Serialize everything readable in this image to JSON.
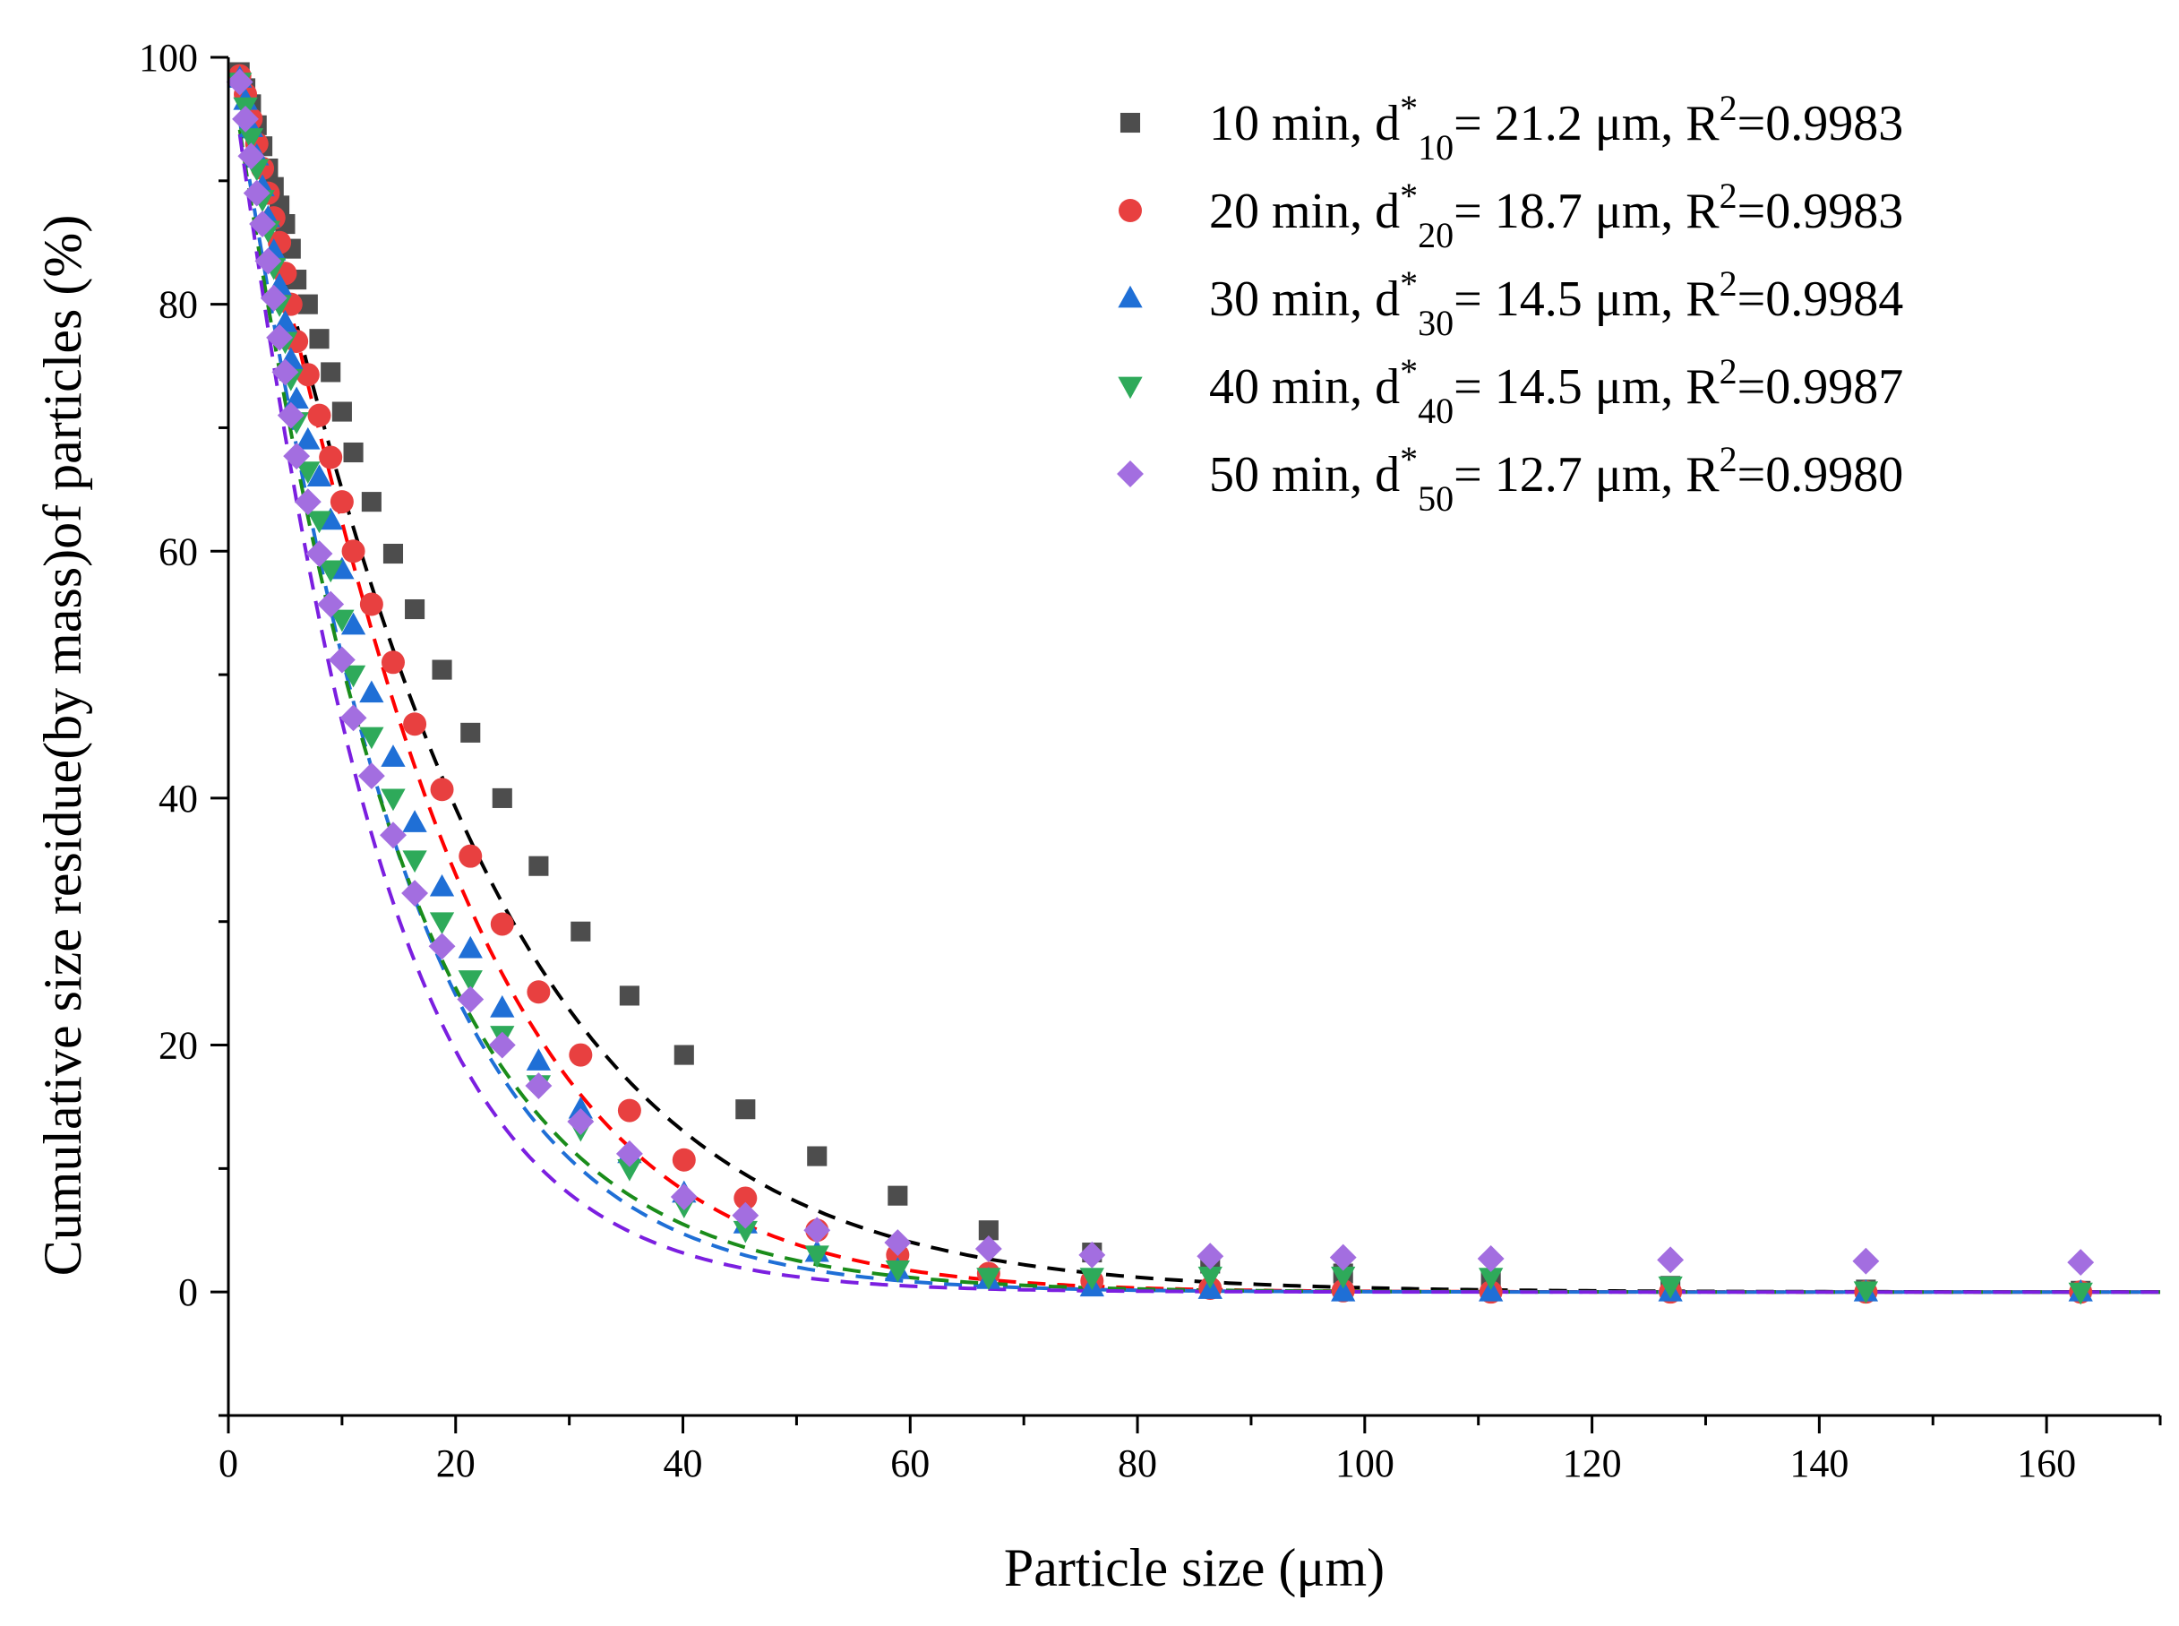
{
  "chart_data": {
    "type": "scatter",
    "xlabel": "Particle size (μm)",
    "ylabel": "Cumulative size residue(by mass)of particles (%)",
    "xlim": [
      0,
      170
    ],
    "ylim": [
      -10,
      100
    ],
    "xticks": [
      0,
      20,
      40,
      60,
      80,
      100,
      120,
      140,
      160
    ],
    "yticks": [
      0,
      20,
      40,
      60,
      80,
      100
    ],
    "grid": false,
    "legend_position": "top-right",
    "fit_model": "R = 100*exp(-(x/d*)^n)",
    "series": [
      {
        "name": "10 min",
        "legend": {
          "prefix": "10 min, d",
          "sup": "*",
          "sub": "10",
          "mid": "= 21.2 μm, R",
          "sup2": "2",
          "suffix": "=0.9983"
        },
        "marker": "square",
        "color": "#4d4d4d",
        "fit_color": "#000000",
        "d_star": 21.2,
        "r2": 0.9983,
        "fit_n": 1.12,
        "x": [
          1,
          1.5,
          2,
          2.5,
          3,
          3.5,
          4,
          4.5,
          5,
          5.5,
          6,
          7,
          8,
          9,
          10,
          11,
          12.6,
          14.5,
          16.4,
          18.8,
          21.3,
          24.1,
          27.3,
          31,
          35.3,
          40.1,
          45.5,
          51.8,
          58.9,
          66.9,
          76,
          86.4,
          98.1,
          111.1,
          126.9,
          144.1,
          163
        ],
        "y": [
          98.8,
          97.5,
          96.2,
          94.5,
          92.8,
          91.0,
          89.5,
          88.0,
          86.5,
          84.5,
          82.0,
          80.0,
          77.2,
          74.5,
          71.3,
          68.0,
          64.0,
          59.8,
          55.3,
          50.4,
          45.3,
          40.0,
          34.5,
          29.2,
          24.0,
          19.2,
          14.8,
          11.0,
          7.8,
          5.0,
          3.2,
          2.3,
          1.5,
          1.0,
          0.5,
          0.2,
          0.1
        ]
      },
      {
        "name": "20 min",
        "legend": {
          "prefix": "20 min, d",
          "sup": "*",
          "sub": "20",
          "mid": "= 18.7 μm, R",
          "sup2": "2",
          "suffix": "=0.9983"
        },
        "marker": "circle",
        "color": "#e84040",
        "fit_color": "#ff0000",
        "d_star": 18.7,
        "r2": 0.9983,
        "fit_n": 1.2,
        "x": [
          1,
          1.5,
          2,
          2.5,
          3,
          3.5,
          4,
          4.5,
          5,
          5.5,
          6,
          7,
          8,
          9,
          10,
          11,
          12.6,
          14.5,
          16.4,
          18.8,
          21.3,
          24.1,
          27.3,
          31,
          35.3,
          40.1,
          45.5,
          51.8,
          58.9,
          66.9,
          76,
          86.4,
          98.1,
          111.1,
          126.9,
          144.1,
          163
        ],
        "y": [
          98.5,
          97.0,
          95.0,
          93.0,
          91.0,
          89.0,
          87.0,
          85.0,
          82.5,
          80.0,
          77.0,
          74.3,
          71.0,
          67.6,
          64.0,
          60.0,
          55.7,
          51.0,
          46.0,
          40.7,
          35.3,
          29.8,
          24.3,
          19.2,
          14.7,
          10.7,
          7.6,
          5.0,
          3.0,
          1.5,
          0.9,
          0.3,
          0.1,
          0.0,
          0.0,
          0.0,
          0.0
        ]
      },
      {
        "name": "30 min",
        "legend": {
          "prefix": "30 min, d",
          "sup": "*",
          "sub": "30",
          "mid": "= 14.5 μm, R",
          "sup2": "2",
          "suffix": "=0.9984"
        },
        "marker": "triangle-up",
        "color": "#1f6fd6",
        "fit_color": "#1f6fd6",
        "d_star": 14.5,
        "r2": 0.9984,
        "fit_n": 1.1,
        "x": [
          1,
          1.5,
          2,
          2.5,
          3,
          3.5,
          4,
          4.5,
          5,
          5.5,
          6,
          7,
          8,
          9,
          10,
          11,
          12.6,
          14.5,
          16.4,
          18.8,
          21.3,
          24.1,
          27.3,
          31,
          35.3,
          40.1,
          45.5,
          51.8,
          58.9,
          66.9,
          76,
          86.4,
          98.1,
          111.1,
          126.9,
          144.1,
          163
        ],
        "y": [
          98.3,
          96.5,
          94.3,
          92.0,
          89.5,
          87.0,
          84.3,
          81.5,
          78.5,
          75.5,
          72.3,
          69.0,
          66.0,
          62.5,
          58.5,
          54.0,
          48.5,
          43.3,
          38.0,
          32.8,
          27.8,
          23.0,
          18.7,
          14.8,
          11.2,
          8.0,
          5.5,
          3.2,
          1.8,
          1.0,
          0.4,
          0.2,
          0.0,
          0.0,
          0.0,
          0.0,
          0.0
        ]
      },
      {
        "name": "40 min",
        "legend": {
          "prefix": "40 min, d",
          "sup": "*",
          "sub": "40",
          "mid": "= 14.5 μm, R",
          "sup2": "2",
          "suffix": "=0.9987"
        },
        "marker": "triangle-down",
        "color": "#2eaa5a",
        "fit_color": "#1a8c1a",
        "d_star": 14.5,
        "r2": 0.9987,
        "fit_n": 1.05,
        "x": [
          1,
          1.5,
          2,
          2.5,
          3,
          3.5,
          4,
          4.5,
          5,
          5.5,
          6,
          7,
          8,
          9,
          10,
          11,
          12.6,
          14.5,
          16.4,
          18.8,
          21.3,
          24.1,
          27.3,
          31,
          35.3,
          40.1,
          45.5,
          51.8,
          58.9,
          66.9,
          76,
          86.4,
          98.1,
          111.1,
          126.9,
          144.1,
          163
        ],
        "y": [
          98.0,
          96.0,
          93.5,
          91.0,
          88.5,
          86.0,
          83.0,
          80.0,
          77.0,
          74.0,
          70.5,
          66.5,
          62.5,
          58.5,
          54.5,
          50.0,
          45.0,
          40.0,
          35.0,
          30.0,
          25.3,
          20.8,
          16.8,
          13.2,
          10.0,
          7.0,
          5.0,
          3.0,
          1.8,
          1.2,
          1.2,
          1.3,
          1.3,
          1.2,
          0.5,
          0.1,
          0.0
        ]
      },
      {
        "name": "50 min",
        "legend": {
          "prefix": "50 min, d",
          "sup": "*",
          "sub": "50",
          "mid": "= 12.7 μm, R",
          "sup2": "2",
          "suffix": "=0.9980"
        },
        "marker": "diamond",
        "color": "#a36ee0",
        "fit_color": "#7b1fe0",
        "d_star": 12.7,
        "r2": 0.998,
        "fit_n": 1.08,
        "x": [
          1,
          1.5,
          2,
          2.5,
          3,
          3.5,
          4,
          4.5,
          5,
          5.5,
          6,
          7,
          8,
          9,
          10,
          11,
          12.6,
          14.5,
          16.4,
          18.8,
          21.3,
          24.1,
          27.3,
          31,
          35.3,
          40.1,
          45.5,
          51.8,
          58.9,
          66.9,
          76,
          86.4,
          98.1,
          111.1,
          126.9,
          144.1,
          163
        ],
        "y": [
          98.0,
          95.0,
          92.0,
          89.0,
          86.5,
          83.5,
          80.5,
          77.3,
          74.5,
          71.0,
          67.7,
          64.0,
          59.8,
          55.7,
          51.2,
          46.5,
          41.8,
          37.0,
          32.3,
          28.0,
          23.7,
          20.0,
          16.7,
          13.8,
          11.2,
          7.7,
          6.2,
          5.0,
          4.0,
          3.5,
          3.0,
          2.9,
          2.8,
          2.7,
          2.6,
          2.5,
          2.4
        ]
      }
    ]
  }
}
